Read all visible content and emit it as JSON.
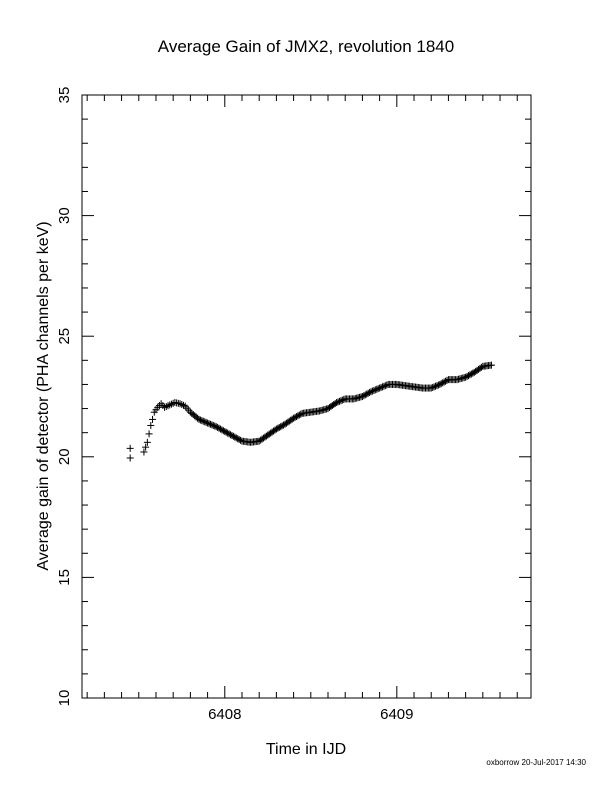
{
  "chart_data": {
    "type": "scatter",
    "title": "Average Gain of JMX2, revolution 1840",
    "xlabel": "Time in IJD",
    "ylabel": "Average gain of detector (PHA channels per keV)",
    "xlim": [
      6407.17,
      6409.78
    ],
    "ylim": [
      10,
      35
    ],
    "x_ticks": [
      6408,
      6409
    ],
    "y_ticks": [
      10,
      15,
      20,
      25,
      30,
      35
    ],
    "marker": "+",
    "color": "#000000",
    "grid": false,
    "series": [
      {
        "points": [
          [
            6407.45,
            19.95
          ],
          [
            6407.45,
            20.35
          ],
          [
            6407.53,
            20.2
          ],
          [
            6407.55,
            20.6
          ],
          [
            6407.56,
            20.95
          ],
          [
            6407.57,
            21.3
          ],
          [
            6407.58,
            21.55
          ],
          [
            6407.59,
            21.85
          ],
          [
            6407.61,
            22.05
          ],
          [
            6407.63,
            22.2
          ],
          [
            6407.65,
            22.05
          ],
          [
            6407.68,
            22.15
          ],
          [
            6407.71,
            22.25
          ],
          [
            6407.74,
            22.2
          ],
          [
            6407.77,
            22.1
          ],
          [
            6407.8,
            21.85
          ],
          [
            6407.85,
            21.55
          ],
          [
            6407.9,
            21.4
          ],
          [
            6407.95,
            21.25
          ],
          [
            6408.0,
            21.05
          ],
          [
            6408.05,
            20.85
          ],
          [
            6408.1,
            20.65
          ],
          [
            6408.15,
            20.6
          ],
          [
            6408.2,
            20.65
          ],
          [
            6408.25,
            20.9
          ],
          [
            6408.3,
            21.15
          ],
          [
            6408.35,
            21.35
          ],
          [
            6408.4,
            21.6
          ],
          [
            6408.45,
            21.8
          ],
          [
            6408.5,
            21.85
          ],
          [
            6408.55,
            21.9
          ],
          [
            6408.6,
            22.0
          ],
          [
            6408.65,
            22.25
          ],
          [
            6408.7,
            22.4
          ],
          [
            6408.75,
            22.4
          ],
          [
            6408.8,
            22.5
          ],
          [
            6408.85,
            22.7
          ],
          [
            6408.9,
            22.85
          ],
          [
            6408.95,
            23.0
          ],
          [
            6409.0,
            23.0
          ],
          [
            6409.05,
            22.95
          ],
          [
            6409.1,
            22.9
          ],
          [
            6409.15,
            22.85
          ],
          [
            6409.2,
            22.85
          ],
          [
            6409.25,
            23.0
          ],
          [
            6409.3,
            23.2
          ],
          [
            6409.35,
            23.2
          ],
          [
            6409.4,
            23.3
          ],
          [
            6409.45,
            23.5
          ],
          [
            6409.5,
            23.75
          ],
          [
            6409.55,
            23.8
          ]
        ]
      }
    ],
    "footer": "oxborrow 20-Jul-2017 14:30"
  }
}
